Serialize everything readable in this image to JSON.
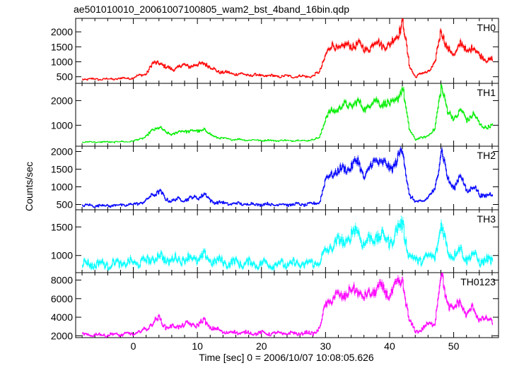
{
  "chart_data": {
    "type": "line",
    "title": "ae501010010_20061007100805_wam2_bst_4band_16bin.qdp",
    "xlabel": "Time [sec] 0 = 2006/10/07 10:08:05.626",
    "ylabel": "Counts/sec",
    "xlim": [
      -9,
      57
    ],
    "x_ticks": [
      0,
      10,
      20,
      30,
      40,
      50
    ],
    "grid": false,
    "line_style": "step-with-error-bars",
    "key_times": [
      -8,
      -4,
      -2,
      0,
      2,
      3,
      4,
      5,
      6,
      8,
      10,
      11,
      12,
      14,
      18,
      22,
      26,
      28,
      29,
      30,
      31,
      33,
      35,
      36,
      38,
      40,
      42,
      43,
      44,
      45,
      46,
      47,
      48,
      49,
      50,
      51,
      52,
      53,
      54,
      55,
      56
    ],
    "panels": [
      {
        "name": "TH0",
        "color": "#ff0000",
        "ylim": [
          280,
          2450
        ],
        "y_ticks": [
          500,
          1000,
          1500,
          2000
        ],
        "values": [
          420,
          420,
          440,
          470,
          620,
          920,
          1000,
          800,
          760,
          880,
          870,
          1000,
          780,
          640,
          560,
          520,
          510,
          520,
          650,
          1300,
          1500,
          1500,
          1600,
          1400,
          1650,
          1500,
          2300,
          900,
          500,
          600,
          700,
          900,
          2150,
          1400,
          1200,
          1700,
          1250,
          1600,
          1150,
          1100,
          1100
        ]
      },
      {
        "name": "TH1",
        "color": "#00ee00",
        "ylim": [
          150,
          2700
        ],
        "y_ticks": [
          1000,
          2000
        ],
        "values": [
          320,
          320,
          330,
          350,
          550,
          800,
          950,
          680,
          650,
          780,
          750,
          850,
          600,
          450,
          400,
          380,
          380,
          400,
          520,
          1300,
          1600,
          1800,
          1900,
          1700,
          2000,
          1800,
          2400,
          900,
          400,
          500,
          600,
          800,
          2700,
          1500,
          1300,
          1600,
          1200,
          1500,
          1000,
          950,
          950
        ]
      },
      {
        "name": "TH2",
        "color": "#0000ff",
        "ylim": [
          350,
          2150
        ],
        "y_ticks": [
          500,
          1000,
          1500,
          2000
        ],
        "values": [
          470,
          470,
          480,
          500,
          600,
          800,
          870,
          650,
          620,
          650,
          700,
          800,
          600,
          530,
          510,
          500,
          500,
          510,
          580,
          1200,
          1400,
          1500,
          1700,
          1300,
          1800,
          1500,
          2000,
          800,
          550,
          600,
          700,
          900,
          2100,
          1200,
          1000,
          1300,
          900,
          1000,
          780,
          760,
          760
        ]
      },
      {
        "name": "TH3",
        "color": "#00ffff",
        "ylim": [
          700,
          1800
        ],
        "y_ticks": [
          1000,
          1500
        ],
        "values": [
          850,
          850,
          860,
          870,
          900,
          950,
          980,
          930,
          920,
          950,
          940,
          980,
          920,
          880,
          860,
          850,
          850,
          860,
          900,
          1050,
          1200,
          1250,
          1450,
          1200,
          1350,
          1250,
          1550,
          1000,
          900,
          950,
          950,
          1000,
          1500,
          1100,
          1000,
          1100,
          950,
          1000,
          920,
          900,
          900
        ]
      },
      {
        "name": "TH0123",
        "color": "#ff00ff",
        "ylim": [
          1800,
          8800
        ],
        "y_ticks": [
          2000,
          4000,
          6000,
          8000
        ],
        "values": [
          2100,
          2100,
          2150,
          2200,
          2700,
          3500,
          3800,
          3000,
          2900,
          3200,
          3200,
          3600,
          2900,
          2400,
          2300,
          2250,
          2250,
          2300,
          2700,
          5500,
          6000,
          6500,
          7000,
          6000,
          7200,
          6500,
          8000,
          3500,
          2500,
          2700,
          3200,
          3500,
          8500,
          5500,
          4800,
          5700,
          4200,
          5000,
          3800,
          3700,
          3700
        ]
      }
    ]
  }
}
